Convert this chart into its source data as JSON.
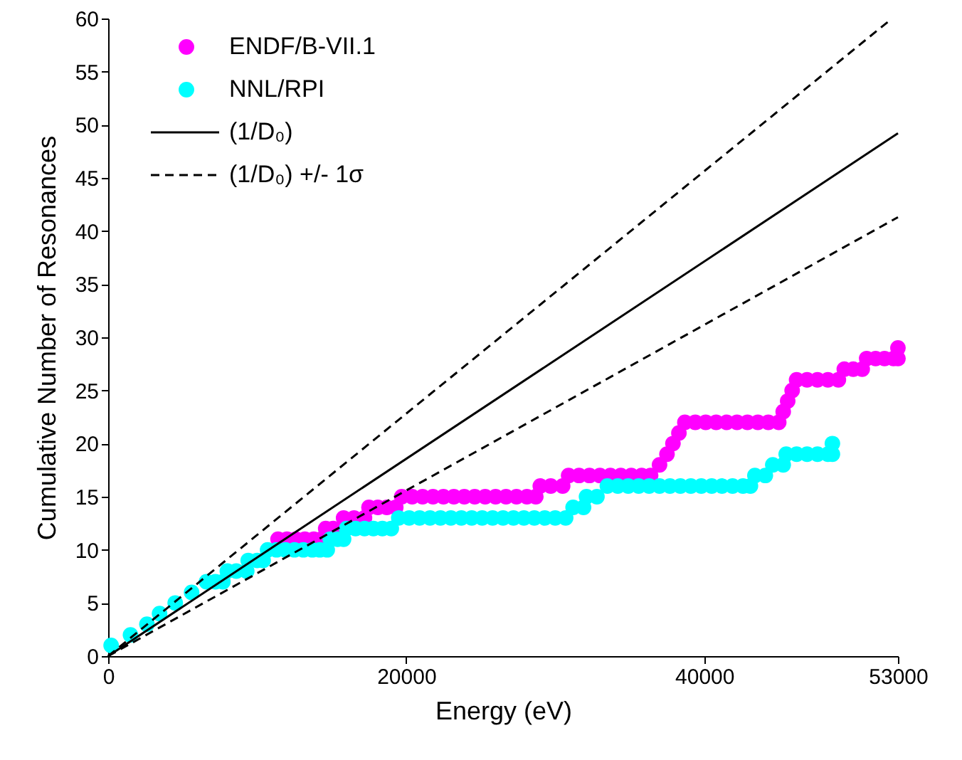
{
  "chart_data": {
    "type": "scatter",
    "xlabel": "Energy (eV)",
    "ylabel": "Cumulative Number of Resonances",
    "xlim": [
      0,
      53000
    ],
    "ylim": [
      0,
      60
    ],
    "xticks": [
      0,
      20000,
      40000,
      53000
    ],
    "yticks": [
      0,
      5,
      10,
      15,
      20,
      25,
      30,
      35,
      40,
      45,
      50,
      55,
      60
    ],
    "grid": false,
    "legend": "top left",
    "marker": "circle",
    "series": [
      {
        "name": "ENDF/B-VII.1",
        "color": "#ff00ff",
        "x": [
          11400,
          12000,
          12600,
          13200,
          13800,
          14300,
          14600,
          15100,
          15800,
          16500,
          17200,
          17500,
          18100,
          18700,
          19300,
          19700,
          20400,
          21100,
          21800,
          22500,
          23200,
          23900,
          24600,
          25300,
          26000,
          26700,
          27400,
          28100,
          28700,
          29000,
          29700,
          30500,
          30900,
          31600,
          32300,
          33000,
          33700,
          34400,
          35100,
          35800,
          36400,
          37000,
          37500,
          37900,
          38300,
          38700,
          39400,
          40100,
          40800,
          41500,
          42200,
          42900,
          43600,
          44300,
          45000,
          45300,
          45600,
          45900,
          46200,
          46900,
          47600,
          48300,
          49000,
          49400,
          50000,
          50600,
          50900,
          51500,
          52100,
          52700,
          53000,
          53000
        ],
        "values": [
          11,
          11,
          11,
          11,
          11,
          11,
          12,
          12,
          13,
          13,
          13,
          14,
          14,
          14,
          14,
          15,
          15,
          15,
          15,
          15,
          15,
          15,
          15,
          15,
          15,
          15,
          15,
          15,
          15,
          16,
          16,
          16,
          17,
          17,
          17,
          17,
          17,
          17,
          17,
          17,
          17,
          18,
          19,
          20,
          21,
          22,
          22,
          22,
          22,
          22,
          22,
          22,
          22,
          22,
          22,
          23,
          24,
          25,
          26,
          26,
          26,
          26,
          26,
          27,
          27,
          27,
          28,
          28,
          28,
          28,
          28,
          29
        ]
      },
      {
        "name": "NNL/RPI",
        "color": "#00ffff",
        "x": [
          200,
          1500,
          2600,
          3450,
          4500,
          5600,
          6600,
          7200,
          7700,
          8000,
          8600,
          9300,
          9400,
          10000,
          10400,
          10700,
          11300,
          11900,
          12500,
          13100,
          13700,
          14200,
          14700,
          14900,
          15400,
          15800,
          16000,
          16600,
          17200,
          17800,
          18400,
          19000,
          19500,
          20200,
          20900,
          21600,
          22300,
          23000,
          23700,
          24400,
          25100,
          25800,
          26500,
          27200,
          27900,
          28600,
          29300,
          30000,
          30700,
          31200,
          31900,
          32100,
          32800,
          33500,
          34200,
          34900,
          35600,
          36300,
          37000,
          37700,
          38400,
          39100,
          39800,
          40500,
          41200,
          41900,
          42600,
          43100,
          43400,
          44100,
          44600,
          45300,
          45500,
          46200,
          46900,
          47600,
          48300,
          48600,
          48600
        ],
        "values": [
          1,
          2,
          3,
          4,
          5,
          6,
          7,
          7,
          7,
          8,
          8,
          8,
          9,
          9,
          9,
          10,
          10,
          10,
          10,
          10,
          10,
          10,
          10,
          11,
          11,
          11,
          12,
          12,
          12,
          12,
          12,
          12,
          13,
          13,
          13,
          13,
          13,
          13,
          13,
          13,
          13,
          13,
          13,
          13,
          13,
          13,
          13,
          13,
          13,
          14,
          14,
          15,
          15,
          16,
          16,
          16,
          16,
          16,
          16,
          16,
          16,
          16,
          16,
          16,
          16,
          16,
          16,
          16,
          17,
          17,
          18,
          18,
          19,
          19,
          19,
          19,
          19,
          19,
          20
        ]
      },
      {
        "name": "(1/D₀)",
        "color": "#000000",
        "type": "line",
        "marker": "none",
        "line_style": "solid",
        "x": [
          0,
          53000
        ],
        "values": [
          0,
          49.2
        ]
      },
      {
        "name": "(1/D₀) +/- 1σ",
        "color": "#000000",
        "type": "line",
        "marker": "none",
        "line_style": "dashed",
        "x": [
          0,
          52600
        ],
        "values": [
          0,
          60
        ]
      },
      {
        "color": "#000000",
        "type": "line",
        "marker": "none",
        "line_style": "dashed",
        "x": [
          0,
          53000
        ],
        "values": [
          0,
          41.3
        ]
      }
    ]
  }
}
